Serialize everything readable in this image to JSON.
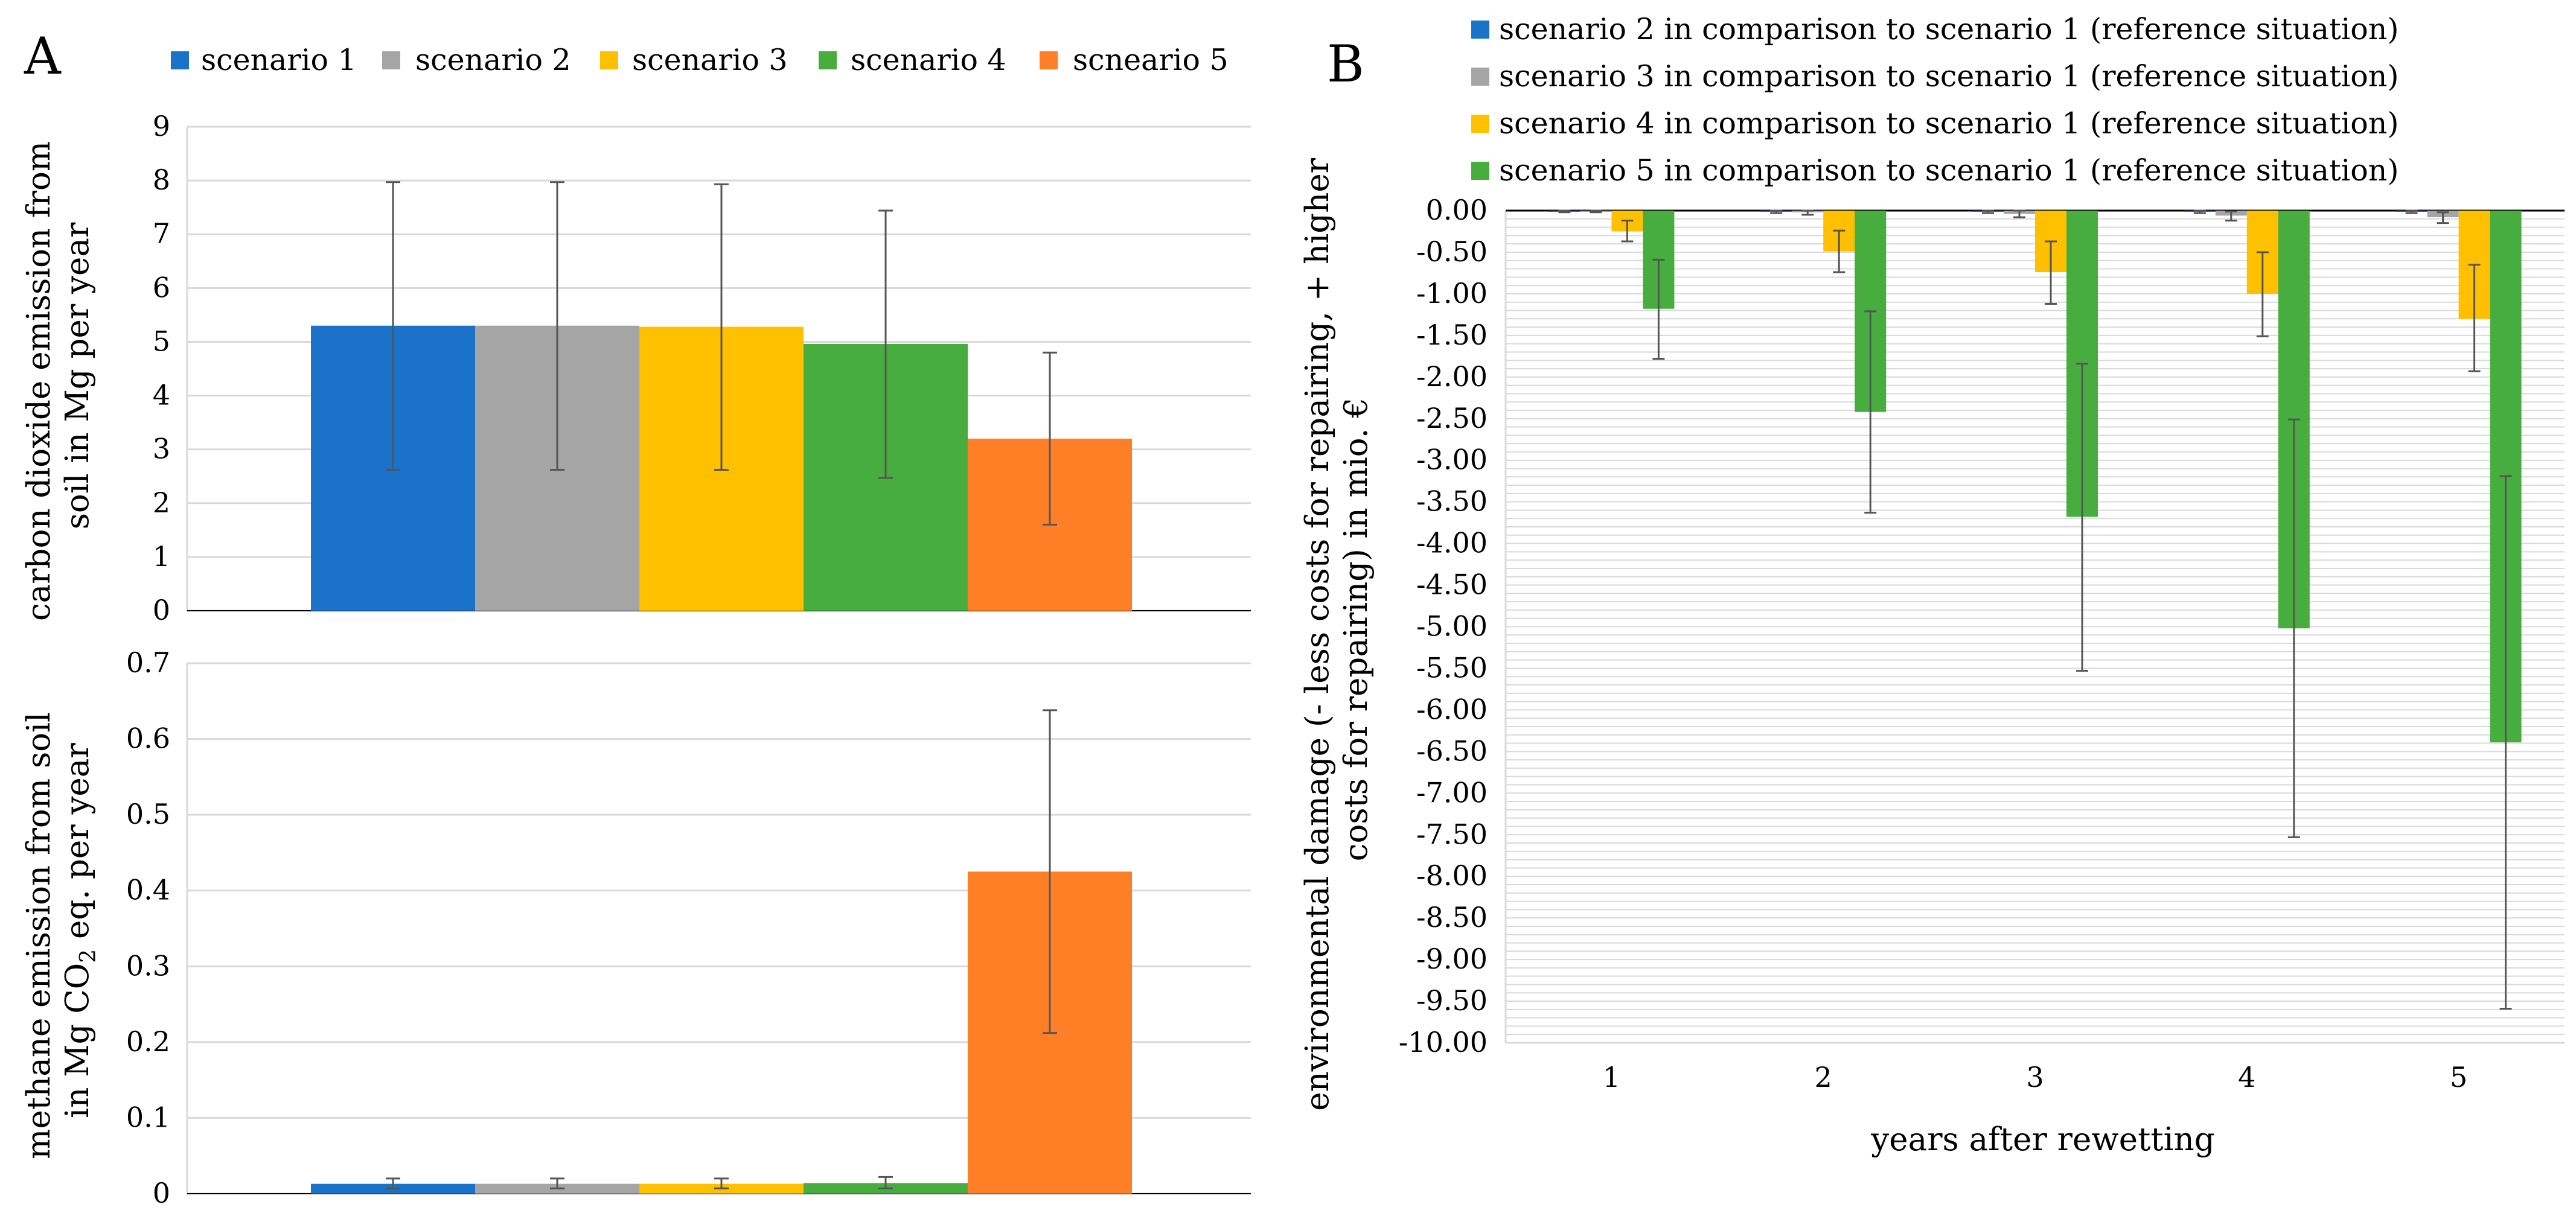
{
  "panel_labels": {
    "a": "A",
    "b": "B"
  },
  "colors": {
    "s1": "#1a72c9",
    "s2": "#a5a5a5",
    "s3": "#ffc000",
    "s4": "#47ad3e",
    "s5": "#fe7f26",
    "grid": "#d9d9d9",
    "axis": "#000000",
    "errorbar": "#555555"
  },
  "chart_data": [
    {
      "id": "A-top",
      "type": "bar",
      "ylabel_lines": [
        "carbon dioxide emission from",
        "soil in Mg per year"
      ],
      "ylim": [
        0,
        9
      ],
      "yticks": [
        0,
        1,
        2,
        3,
        4,
        5,
        6,
        7,
        8,
        9
      ],
      "grid": true,
      "legend": {
        "placement": "top",
        "entries": [
          "scenario 1",
          "scenario 2",
          "scenario 3",
          "scenario 4",
          "scneario 5"
        ]
      },
      "series": [
        {
          "name": "scenario 1",
          "value": 5.3,
          "err_low": 2.62,
          "err_high": 7.97
        },
        {
          "name": "scenario 2",
          "value": 5.3,
          "err_low": 2.62,
          "err_high": 7.97
        },
        {
          "name": "scenario 3",
          "value": 5.28,
          "err_low": 2.62,
          "err_high": 7.93
        },
        {
          "name": "scenario 4",
          "value": 4.96,
          "err_low": 2.47,
          "err_high": 7.44
        },
        {
          "name": "scneario 5",
          "value": 3.2,
          "err_low": 1.6,
          "err_high": 4.8
        }
      ]
    },
    {
      "id": "A-bottom",
      "type": "bar",
      "ylabel_lines": [
        "methane emission from soil",
        "in Mg CO",
        "2",
        " eq. per year"
      ],
      "ylim": [
        0,
        0.7
      ],
      "yticks": [
        "0",
        "0.1",
        "0.2",
        "0.3",
        "0.4",
        "0.5",
        "0.6",
        "0.7"
      ],
      "grid": true,
      "series": [
        {
          "name": "scenario 1",
          "value": 0.013,
          "err_low": 0.007,
          "err_high": 0.02
        },
        {
          "name": "scenario 2",
          "value": 0.013,
          "err_low": 0.007,
          "err_high": 0.02
        },
        {
          "name": "scenario 3",
          "value": 0.013,
          "err_low": 0.007,
          "err_high": 0.02
        },
        {
          "name": "scenario 4",
          "value": 0.014,
          "err_low": 0.007,
          "err_high": 0.022
        },
        {
          "name": "scneario 5",
          "value": 0.425,
          "err_low": 0.212,
          "err_high": 0.638
        }
      ]
    },
    {
      "id": "B",
      "type": "bar",
      "xlabel": "years after rewetting",
      "ylabel_lines": [
        "environmental damage (- less costs for repairing, + higher",
        "costs for repairing) in mio. €"
      ],
      "ylim": [
        -10,
        0
      ],
      "yticks": [
        "0.00",
        "-0.50",
        "-1.00",
        "-1.50",
        "-2.00",
        "-2.50",
        "-3.00",
        "-3.50",
        "-4.00",
        "-4.50",
        "-5.00",
        "-5.50",
        "-6.00",
        "-6.50",
        "-7.00",
        "-7.50",
        "-8.00",
        "-8.50",
        "-9.00",
        "-9.50",
        "-10.00"
      ],
      "categories": [
        "1",
        "2",
        "3",
        "4",
        "5"
      ],
      "grid": true,
      "legend": {
        "placement": "top",
        "entries": [
          "scenario 2 in comparison to scenario 1 (reference situation)",
          "scenario 3 in comparison to scenario 1 (reference situation)",
          "scenario 4 in comparison to scenario 1 (reference situation)",
          "scenario 5 in comparison to scenario 1 (reference situation)"
        ]
      },
      "series": [
        {
          "name": "scenario 2 in comparison to scenario 1 (reference situation)",
          "values": [
            0,
            0,
            0,
            0,
            0
          ],
          "err_low": [
            -0.02,
            -0.03,
            -0.03,
            -0.03,
            -0.03
          ],
          "err_high": [
            0.0,
            0.0,
            0.0,
            0.0,
            0.0
          ]
        },
        {
          "name": "scenario 3 in comparison to scenario 1 (reference situation)",
          "values": [
            -0.01,
            -0.02,
            -0.04,
            -0.06,
            -0.08
          ],
          "err_low": [
            -0.02,
            -0.05,
            -0.08,
            -0.12,
            -0.15
          ],
          "err_high": [
            0.0,
            0.0,
            0.0,
            -0.01,
            -0.02
          ]
        },
        {
          "name": "scenario 4 in comparison to scenario 1 (reference situation)",
          "values": [
            -0.25,
            -0.49,
            -0.74,
            -1.0,
            -1.3
          ],
          "err_low": [
            -0.37,
            -0.74,
            -1.12,
            -1.51,
            -1.93
          ],
          "err_high": [
            -0.12,
            -0.24,
            -0.37,
            -0.5,
            -0.65
          ]
        },
        {
          "name": "scenario 5 in comparison to scenario 1 (reference situation)",
          "values": [
            -1.18,
            -2.42,
            -3.68,
            -5.02,
            -6.39
          ],
          "err_low": [
            -1.78,
            -3.63,
            -5.53,
            -7.53,
            -9.59
          ],
          "err_high": [
            -0.59,
            -1.21,
            -1.84,
            -2.51,
            -3.19
          ]
        }
      ]
    }
  ]
}
